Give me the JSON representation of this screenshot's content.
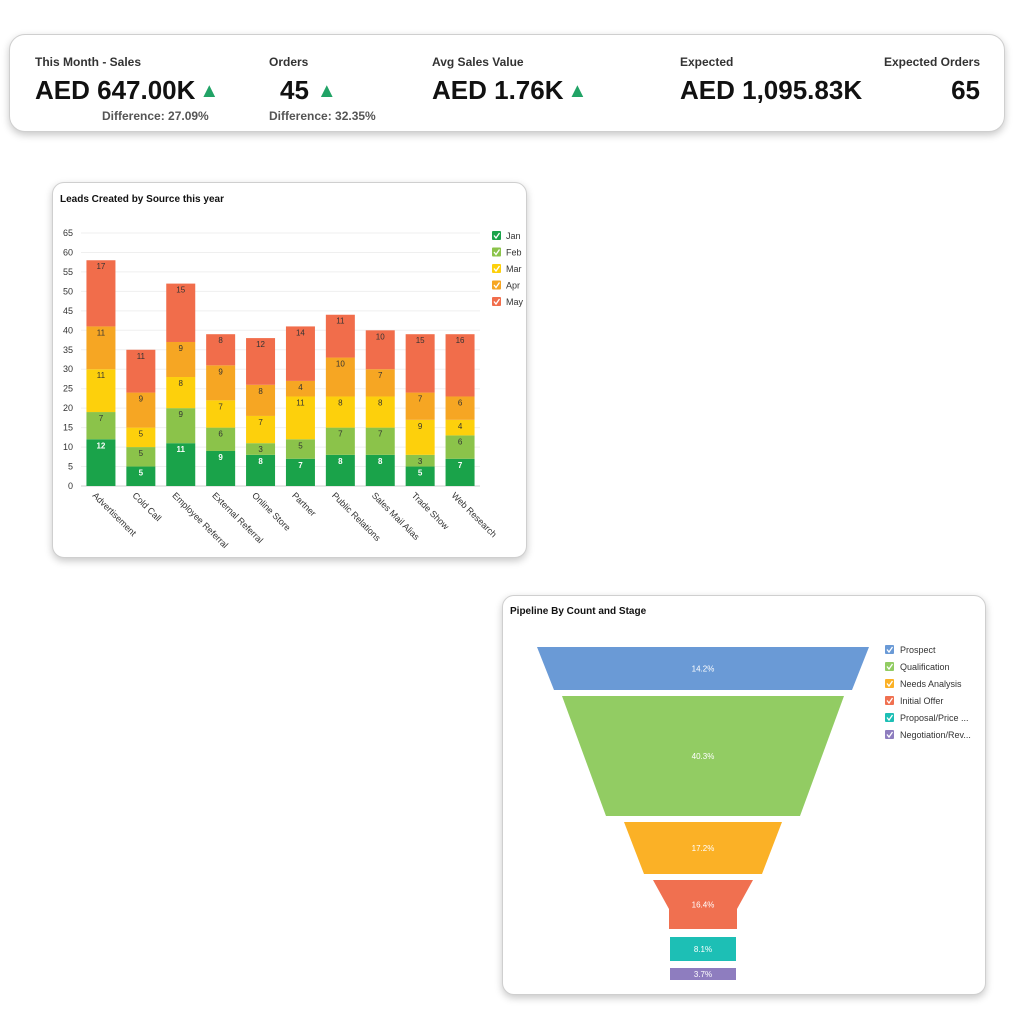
{
  "kpis": [
    {
      "label": "This Month - Sales",
      "value": "AED 647.00K",
      "trend": "up",
      "difference": "Difference: 27.09%"
    },
    {
      "label": "Orders",
      "value": "45",
      "trend": "up",
      "difference": "Difference: 32.35%"
    },
    {
      "label": "Avg Sales Value",
      "value": "AED 1.76K",
      "trend": "up",
      "difference": ""
    },
    {
      "label": "Expected",
      "value": "AED 1,095.83K",
      "trend": "",
      "difference": ""
    },
    {
      "label": "Expected Orders",
      "value": "65",
      "trend": "",
      "difference": ""
    }
  ],
  "colors": {
    "trend_up": "#21a366"
  },
  "chart_data": [
    {
      "type": "bar",
      "stacked": true,
      "title": "Leads Created by Source this year",
      "xlabel": "",
      "ylabel": "",
      "ylim": [
        0,
        65
      ],
      "yticks": [
        0,
        5,
        10,
        15,
        20,
        25,
        30,
        35,
        40,
        45,
        50,
        55,
        60,
        65
      ],
      "grid": true,
      "legend_position": "top-right",
      "categories": [
        "Advertisement",
        "Cold Call",
        "Employee Referral",
        "External Referral",
        "Online Store",
        "Partner",
        "Public Relations",
        "Sales Mail Alias",
        "Trade Show",
        "Web Research"
      ],
      "series": [
        {
          "name": "Jan",
          "color": "#1aa34a",
          "values": [
            12,
            5,
            11,
            9,
            8,
            7,
            8,
            8,
            5,
            7
          ]
        },
        {
          "name": "Feb",
          "color": "#8bc34a",
          "values": [
            7,
            5,
            9,
            6,
            3,
            5,
            7,
            7,
            3,
            6
          ]
        },
        {
          "name": "Mar",
          "color": "#fdd00c",
          "values": [
            11,
            5,
            8,
            7,
            7,
            11,
            8,
            8,
            9,
            4
          ]
        },
        {
          "name": "Apr",
          "color": "#f6a623",
          "values": [
            11,
            9,
            9,
            9,
            8,
            4,
            10,
            7,
            7,
            6
          ]
        },
        {
          "name": "May",
          "color": "#f16d4b",
          "values": [
            17,
            11,
            15,
            8,
            12,
            14,
            11,
            10,
            15,
            16
          ]
        }
      ]
    },
    {
      "type": "funnel",
      "title": "Pipeline By Count and Stage",
      "legend_position": "right",
      "categories": [
        "Prospect",
        "Qualification",
        "Needs Analysis",
        "Initial Offer",
        "Proposal/Price ...",
        "Negotiation/Rev..."
      ],
      "values": [
        14.2,
        40.3,
        17.2,
        16.4,
        8.1,
        3.7
      ],
      "labels": [
        "14.2%",
        "40.3%",
        "17.2%",
        "16.4%",
        "8.1%",
        "3.7%"
      ],
      "colors": [
        "#6a9ad6",
        "#92cc63",
        "#fbb126",
        "#f07050",
        "#1dbfb5",
        "#8e7dbf"
      ]
    }
  ]
}
